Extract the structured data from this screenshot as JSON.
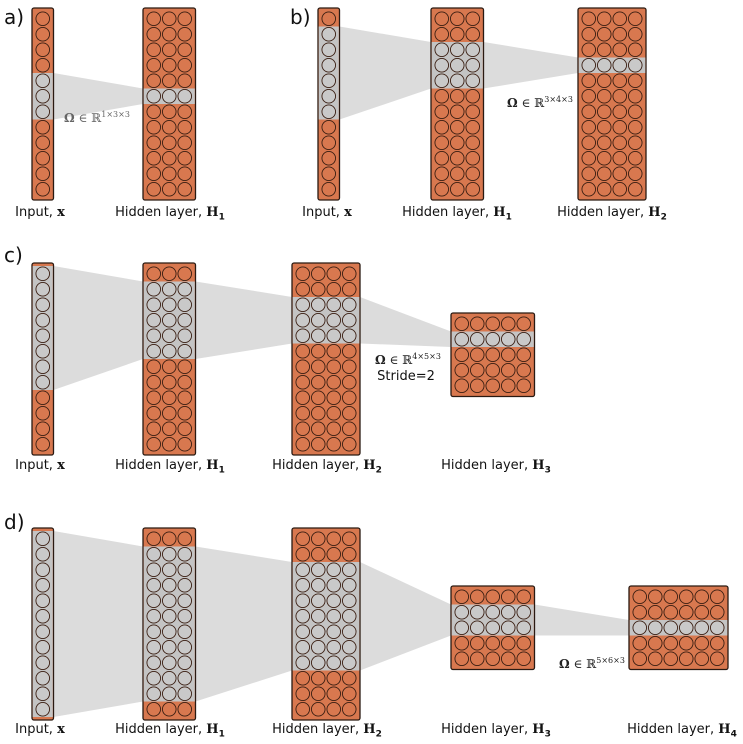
{
  "panels": [
    {
      "letter": "a)",
      "layers": [
        {
          "label_text": "Input, ",
          "label_sym": "x",
          "label_sub": "",
          "cols": 1,
          "rows": 12,
          "hl_from": 4,
          "hl_count": 3
        },
        {
          "label_text": "Hidden layer, ",
          "label_sym": "H",
          "label_sub": "1",
          "cols": 3,
          "rows": 12,
          "hl_from": 5,
          "hl_count": 1
        }
      ],
      "kernel": {
        "symbol": "Ω",
        "member": "∈",
        "space": "ℝ",
        "dims": "1×3×3",
        "stride": ""
      }
    },
    {
      "letter": "b)",
      "layers": [
        {
          "label_text": "Input, ",
          "label_sym": "x",
          "label_sub": "",
          "cols": 1,
          "rows": 12,
          "hl_from": 1,
          "hl_count": 6
        },
        {
          "label_text": "Hidden layer, ",
          "label_sym": "H",
          "label_sub": "1",
          "cols": 3,
          "rows": 12,
          "hl_from": 2,
          "hl_count": 3
        },
        {
          "label_text": "Hidden layer, ",
          "label_sym": "H",
          "label_sub": "2",
          "cols": 4,
          "rows": 12,
          "hl_from": 3,
          "hl_count": 1
        }
      ],
      "kernel": {
        "symbol": "Ω",
        "member": "∈",
        "space": "ℝ",
        "dims": "3×4×3",
        "stride": ""
      }
    },
    {
      "letter": "c)",
      "layers": [
        {
          "label_text": "Input, ",
          "label_sym": "x",
          "label_sub": "",
          "cols": 1,
          "rows": 12,
          "hl_from": 0,
          "hl_count": 8
        },
        {
          "label_text": "Hidden layer, ",
          "label_sym": "H",
          "label_sub": "1",
          "cols": 3,
          "rows": 12,
          "hl_from": 1,
          "hl_count": 5
        },
        {
          "label_text": "Hidden layer, ",
          "label_sym": "H",
          "label_sub": "2",
          "cols": 4,
          "rows": 12,
          "hl_from": 2,
          "hl_count": 3
        },
        {
          "label_text": "Hidden layer, ",
          "label_sym": "H",
          "label_sub": "3",
          "cols": 5,
          "rows": 5,
          "hl_from": 1,
          "hl_count": 1
        }
      ],
      "kernel": {
        "symbol": "Ω",
        "member": "∈",
        "space": "ℝ",
        "dims": "4×5×3",
        "stride": "Stride=2"
      }
    },
    {
      "letter": "d)",
      "layers": [
        {
          "label_text": "Input, ",
          "label_sym": "x",
          "label_sub": "",
          "cols": 1,
          "rows": 12,
          "hl_from": 0,
          "hl_count": 12
        },
        {
          "label_text": "Hidden layer, ",
          "label_sym": "H",
          "label_sub": "1",
          "cols": 3,
          "rows": 12,
          "hl_from": 1,
          "hl_count": 10
        },
        {
          "label_text": "Hidden layer, ",
          "label_sym": "H",
          "label_sub": "2",
          "cols": 4,
          "rows": 12,
          "hl_from": 2,
          "hl_count": 7
        },
        {
          "label_text": "Hidden layer, ",
          "label_sym": "H",
          "label_sub": "3",
          "cols": 5,
          "rows": 5,
          "hl_from": 1,
          "hl_count": 2
        },
        {
          "label_text": "Hidden layer, ",
          "label_sym": "H",
          "label_sub": "4",
          "cols": 6,
          "rows": 5,
          "hl_from": 2,
          "hl_count": 1
        }
      ],
      "kernel": {
        "symbol": "Ω",
        "member": "∈",
        "space": "ℝ",
        "dims": "5×6×3",
        "stride": ""
      }
    }
  ],
  "colors": {
    "neuron_fill": "#d8784f",
    "neuron_stroke": "#3a1e12",
    "box_fill": "#d8784f",
    "box_stroke": "#2a1a12",
    "highlight_fill": "#c9c9c9",
    "highlight_band": "#c4c4c4",
    "receptive_field": "#dcdcdc"
  }
}
